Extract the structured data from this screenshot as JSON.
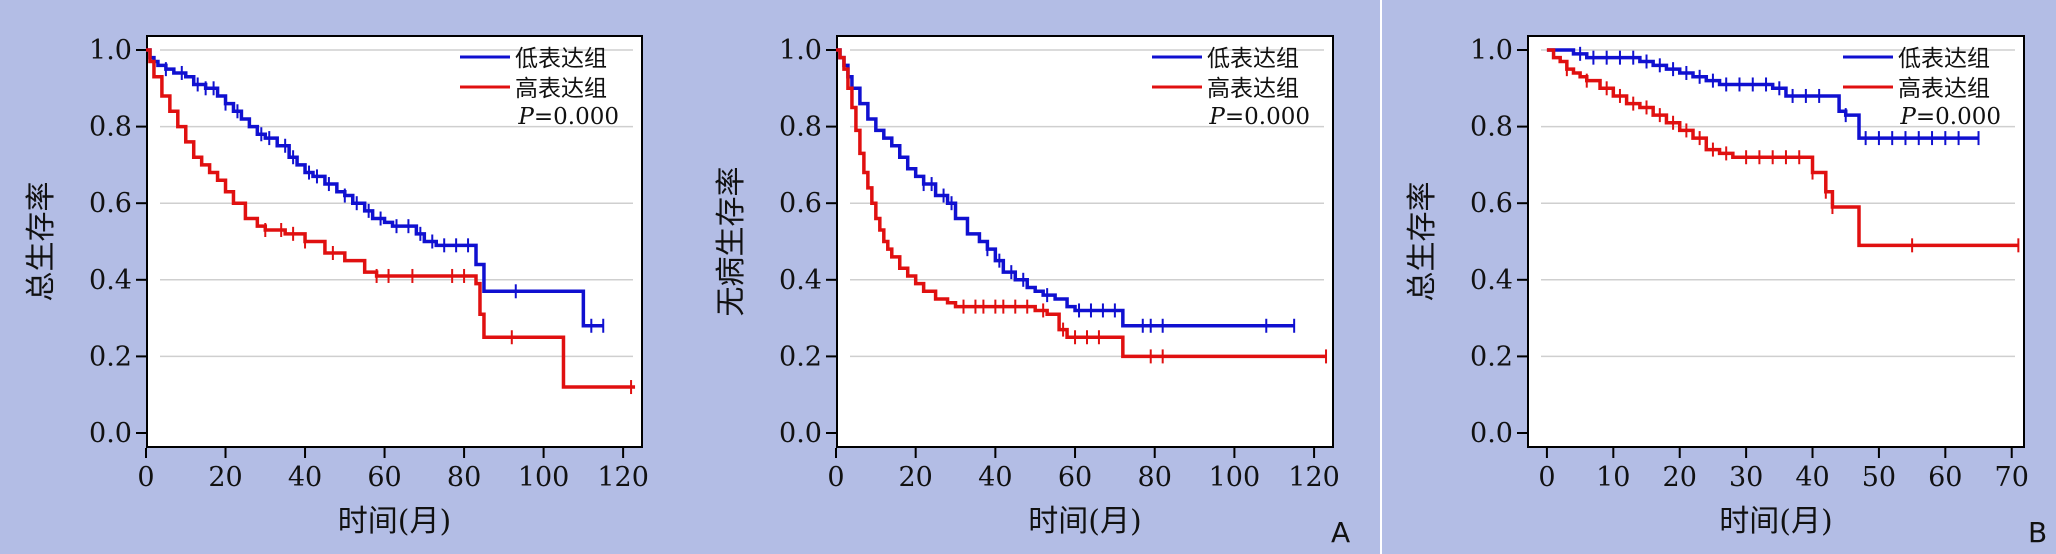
{
  "panels": [
    {
      "label": "A"
    },
    {
      "label": "B"
    }
  ],
  "colors": {
    "low": "#1010d0",
    "high": "#e01010",
    "grid": "#cfcfcf",
    "background": "#b3bde5"
  },
  "chart_data": [
    {
      "type": "line",
      "subtype": "kaplan-meier",
      "ylabel": "总生存率",
      "xlabel": "时间(月)",
      "xlim": [
        0,
        125
      ],
      "ylim": [
        0,
        1
      ],
      "xticks": [
        "0",
        "20",
        "40",
        "60",
        "80",
        "100",
        "120"
      ],
      "yticks": [
        "0.0",
        "0.2",
        "0.4",
        "0.6",
        "0.8",
        "1.0"
      ],
      "grid": "horizontal",
      "legend_position": "top-right",
      "annotation_italic": "P",
      "annotation_rest": "=0.000",
      "series": [
        {
          "name": "低表达组",
          "color_key": "low",
          "x": [
            0,
            1,
            2,
            3,
            5,
            7,
            10,
            12,
            15,
            18,
            20,
            22,
            24,
            26,
            28,
            30,
            33,
            36,
            38,
            40,
            42,
            45,
            48,
            50,
            52,
            55,
            57,
            60,
            62,
            65,
            68,
            70,
            73,
            77,
            80,
            83,
            85,
            95,
            100,
            105,
            110,
            115
          ],
          "y": [
            1.0,
            0.98,
            0.97,
            0.96,
            0.95,
            0.94,
            0.93,
            0.91,
            0.9,
            0.88,
            0.86,
            0.84,
            0.82,
            0.8,
            0.78,
            0.77,
            0.75,
            0.72,
            0.7,
            0.68,
            0.67,
            0.65,
            0.63,
            0.62,
            0.6,
            0.58,
            0.56,
            0.55,
            0.54,
            0.54,
            0.52,
            0.5,
            0.49,
            0.49,
            0.49,
            0.44,
            0.37,
            0.37,
            0.37,
            0.37,
            0.28,
            0.28
          ],
          "censored_x": [
            5,
            9,
            13,
            15,
            17,
            20,
            23,
            29,
            31,
            35,
            37,
            41,
            43,
            46,
            50,
            53,
            56,
            59,
            63,
            66,
            69,
            72,
            75,
            78,
            81,
            93,
            112,
            115
          ]
        },
        {
          "name": "高表达组",
          "color_key": "high",
          "x": [
            0,
            1,
            2,
            4,
            6,
            8,
            10,
            12,
            14,
            16,
            18,
            20,
            22,
            25,
            28,
            30,
            35,
            40,
            45,
            50,
            55,
            58,
            60,
            65,
            70,
            80,
            83,
            84,
            85,
            88,
            95,
            100,
            105,
            110,
            123
          ],
          "y": [
            1.0,
            0.97,
            0.93,
            0.88,
            0.84,
            0.8,
            0.76,
            0.72,
            0.7,
            0.68,
            0.66,
            0.63,
            0.6,
            0.56,
            0.54,
            0.53,
            0.52,
            0.5,
            0.47,
            0.45,
            0.42,
            0.41,
            0.41,
            0.41,
            0.41,
            0.41,
            0.39,
            0.31,
            0.25,
            0.25,
            0.25,
            0.25,
            0.12,
            0.12,
            0.12
          ],
          "censored_x": [
            30,
            34,
            37,
            40,
            47,
            58,
            61,
            67,
            77,
            80,
            92,
            122
          ]
        }
      ]
    },
    {
      "type": "line",
      "subtype": "kaplan-meier",
      "ylabel": "无病生存率",
      "xlabel": "时间(月)",
      "xlim": [
        0,
        125
      ],
      "ylim": [
        0,
        1
      ],
      "xticks": [
        "0",
        "20",
        "40",
        "60",
        "80",
        "100",
        "120"
      ],
      "yticks": [
        "0.0",
        "0.2",
        "0.4",
        "0.6",
        "0.8",
        "1.0"
      ],
      "grid": "horizontal",
      "legend_position": "top-right",
      "annotation_italic": "P",
      "annotation_rest": "=0.000",
      "series": [
        {
          "name": "低表达组",
          "color_key": "low",
          "x": [
            0,
            1,
            2,
            3,
            4,
            6,
            8,
            10,
            12,
            14,
            16,
            18,
            20,
            22,
            25,
            28,
            30,
            33,
            36,
            38,
            40,
            42,
            45,
            48,
            50,
            52,
            55,
            58,
            60,
            65,
            68,
            72,
            80,
            90,
            100,
            115
          ],
          "y": [
            1.0,
            0.98,
            0.96,
            0.93,
            0.9,
            0.86,
            0.82,
            0.79,
            0.77,
            0.75,
            0.72,
            0.69,
            0.67,
            0.65,
            0.62,
            0.6,
            0.56,
            0.52,
            0.5,
            0.48,
            0.45,
            0.42,
            0.4,
            0.38,
            0.37,
            0.36,
            0.35,
            0.33,
            0.32,
            0.32,
            0.32,
            0.28,
            0.28,
            0.28,
            0.28,
            0.28
          ],
          "censored_x": [
            22,
            24,
            27,
            29,
            38,
            41,
            44,
            47,
            53,
            61,
            64,
            67,
            70,
            77,
            79,
            82,
            108,
            115
          ]
        },
        {
          "name": "高表达组",
          "color_key": "high",
          "x": [
            0,
            1,
            2,
            3,
            4,
            5,
            6,
            7,
            8,
            9,
            10,
            11,
            12,
            13,
            14,
            16,
            18,
            20,
            22,
            25,
            28,
            30,
            35,
            40,
            45,
            50,
            53,
            56,
            58,
            62,
            66,
            72,
            80,
            90,
            123
          ],
          "y": [
            1.0,
            0.98,
            0.95,
            0.9,
            0.85,
            0.79,
            0.73,
            0.68,
            0.64,
            0.6,
            0.56,
            0.53,
            0.5,
            0.48,
            0.46,
            0.43,
            0.41,
            0.39,
            0.37,
            0.35,
            0.34,
            0.33,
            0.33,
            0.33,
            0.33,
            0.32,
            0.31,
            0.27,
            0.25,
            0.25,
            0.25,
            0.2,
            0.2,
            0.2,
            0.2
          ],
          "censored_x": [
            32,
            35,
            37,
            40,
            42,
            45,
            48,
            52,
            57,
            60,
            63,
            66,
            79,
            82,
            123
          ]
        }
      ]
    },
    {
      "type": "line",
      "subtype": "kaplan-meier",
      "ylabel": "总生存率",
      "xlabel": "时间(月)",
      "xlim": [
        -3,
        72
      ],
      "ylim": [
        0,
        1
      ],
      "xticks": [
        "0",
        "10",
        "20",
        "30",
        "40",
        "50",
        "60",
        "70"
      ],
      "xtick_values": [
        0,
        10,
        20,
        30,
        40,
        50,
        60,
        70
      ],
      "yticks": [
        "0.0",
        "0.2",
        "0.4",
        "0.6",
        "0.8",
        "1.0"
      ],
      "grid": "horizontal",
      "legend_position": "top-right",
      "annotation_italic": "P",
      "annotation_rest": "=0.000",
      "series": [
        {
          "name": "低表达组",
          "color_key": "low",
          "x": [
            0,
            2,
            4,
            6,
            10,
            14,
            16,
            18,
            20,
            22,
            24,
            26,
            28,
            30,
            34,
            36,
            38,
            40,
            42,
            44,
            45,
            47,
            50,
            55,
            60,
            65
          ],
          "y": [
            1.0,
            1.0,
            0.99,
            0.98,
            0.98,
            0.97,
            0.96,
            0.95,
            0.94,
            0.93,
            0.92,
            0.91,
            0.91,
            0.91,
            0.9,
            0.88,
            0.88,
            0.88,
            0.88,
            0.84,
            0.83,
            0.77,
            0.77,
            0.77,
            0.77,
            0.77
          ],
          "censored_x": [
            5,
            7,
            9,
            11,
            13,
            15,
            17,
            19,
            21,
            23,
            25,
            27,
            29,
            31,
            33,
            35,
            37,
            39,
            41,
            45,
            48,
            50,
            52,
            54,
            56,
            58,
            60,
            62,
            65
          ]
        },
        {
          "name": "高表达组",
          "color_key": "high",
          "x": [
            0,
            1,
            2,
            3,
            4,
            5,
            6,
            8,
            10,
            12,
            14,
            16,
            18,
            20,
            22,
            24,
            26,
            28,
            30,
            34,
            38,
            40,
            42,
            43,
            45,
            47,
            48,
            50,
            55,
            60,
            65,
            71
          ],
          "y": [
            1.0,
            0.98,
            0.97,
            0.95,
            0.94,
            0.93,
            0.92,
            0.9,
            0.88,
            0.86,
            0.85,
            0.83,
            0.81,
            0.79,
            0.77,
            0.74,
            0.73,
            0.72,
            0.72,
            0.72,
            0.72,
            0.68,
            0.63,
            0.59,
            0.59,
            0.49,
            0.49,
            0.49,
            0.49,
            0.49,
            0.49,
            0.49
          ],
          "censored_x": [
            3,
            6,
            9,
            11,
            13,
            15,
            17,
            19,
            21,
            23,
            25,
            27,
            30,
            32,
            34,
            36,
            38,
            40,
            42,
            43,
            55,
            71
          ]
        }
      ]
    }
  ]
}
